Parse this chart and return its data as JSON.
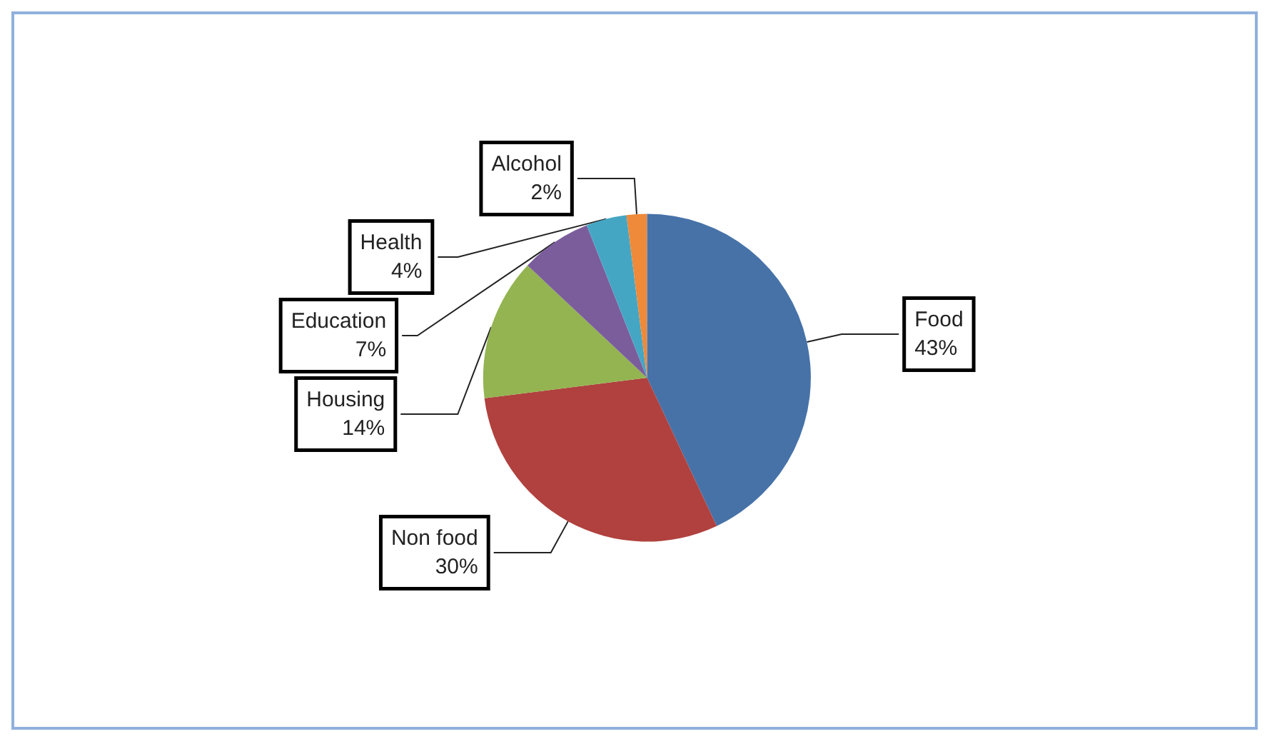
{
  "chart_data": {
    "type": "pie",
    "categories": [
      "Food",
      "Non food",
      "Housing",
      "Education",
      "Health",
      "Alcohol"
    ],
    "values": [
      43,
      30,
      14,
      7,
      4,
      2
    ],
    "value_labels": [
      "43%",
      "30%",
      "14%",
      "7%",
      "4%",
      "2%"
    ],
    "colors": [
      "#4672a8",
      "#b0413e",
      "#93b450",
      "#7b5d9c",
      "#45a6c4",
      "#ee8a3a"
    ],
    "legend": false
  }
}
